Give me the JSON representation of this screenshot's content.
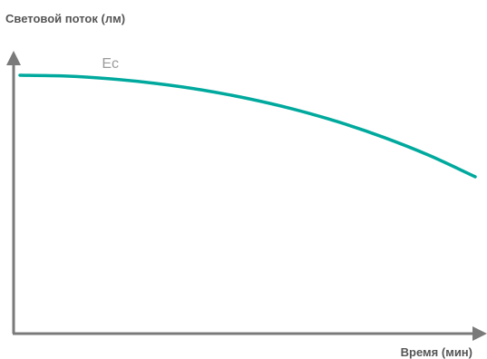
{
  "chart_data": {
    "type": "line",
    "title": "",
    "ylabel": "Световой поток (лм)",
    "xlabel": "Время (мин)",
    "grid": false,
    "legend": "none",
    "series": [
      {
        "name": "Ec",
        "color": "#00a99d",
        "x": [
          0,
          10,
          20,
          30,
          40,
          50,
          60,
          70,
          80,
          90,
          100
        ],
        "values": [
          100,
          99.7,
          98.6,
          96.8,
          94.3,
          91,
          86.9,
          81.9,
          75.9,
          68.9,
          60.7
        ]
      }
    ],
    "xlim": [
      0,
      100
    ],
    "ylim": [
      0,
      120
    ],
    "axis_color": "#7a7a7a"
  }
}
